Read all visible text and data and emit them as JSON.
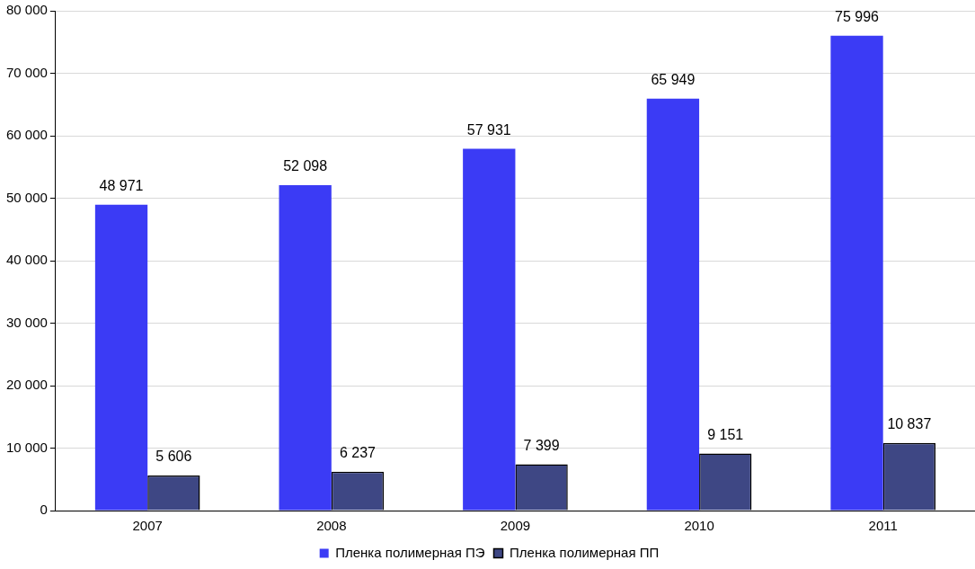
{
  "chart_data": {
    "type": "bar",
    "categories": [
      "2007",
      "2008",
      "2009",
      "2010",
      "2011"
    ],
    "series": [
      {
        "name": "Пленка полимерная ПЭ",
        "color": "#3b3bf5",
        "values": [
          48971,
          52098,
          57931,
          65949,
          75996
        ],
        "value_labels": [
          "48 971",
          "52 098",
          "57 931",
          "65 949",
          "75 996"
        ]
      },
      {
        "name": "Пленка полимерная ПП",
        "color": "#3e4784",
        "values": [
          5606,
          6237,
          7399,
          9151,
          10837
        ],
        "value_labels": [
          "5 606",
          "6 237",
          "7 399",
          "9 151",
          "10 837"
        ]
      }
    ],
    "ylim": [
      0,
      80000
    ],
    "yticks": [
      {
        "value": 0,
        "label": "0"
      },
      {
        "value": 10000,
        "label": "10 000"
      },
      {
        "value": 20000,
        "label": "20 000"
      },
      {
        "value": 30000,
        "label": "30 000"
      },
      {
        "value": 40000,
        "label": "40 000"
      },
      {
        "value": 50000,
        "label": "50 000"
      },
      {
        "value": 60000,
        "label": "60 000"
      },
      {
        "value": 70000,
        "label": "70 000"
      },
      {
        "value": 80000,
        "label": "80 000"
      }
    ],
    "grid": "y",
    "legend": "bottom"
  }
}
